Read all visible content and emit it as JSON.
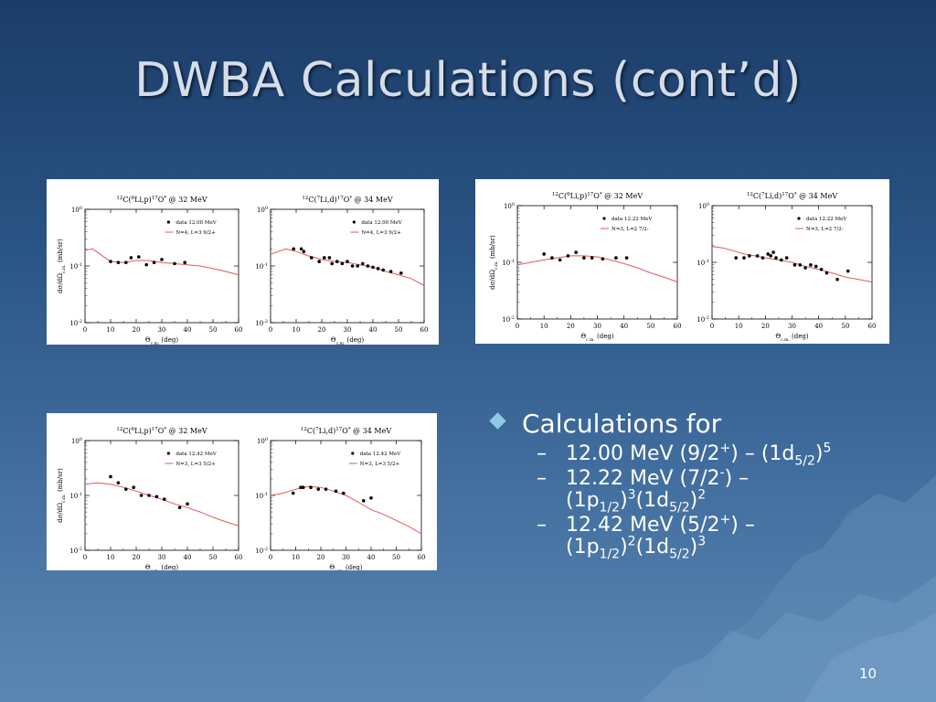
{
  "slide": {
    "title": "DWBA Calculations (cont’d)",
    "page_number": "10"
  },
  "bullets": {
    "main": "Calculations for",
    "subs": [
      {
        "dash": "–",
        "a": "12.00 MeV (9/2",
        "sup1": "+",
        "b": ") – (1d",
        "sub1": "5/2",
        "c": ")",
        "sup2": "5",
        "d": "",
        "sub2": "",
        "e": "",
        "sup3": ""
      },
      {
        "dash": "–",
        "a": "12.22 MeV (7/2",
        "sup1": "-",
        "b": ") – (1p",
        "sub1": "1/2",
        "c": ")",
        "sup2": "3",
        "d": "(1d",
        "sub2": "5/2",
        "e": ")",
        "sup3": "2"
      },
      {
        "dash": "–",
        "a": "12.42 MeV (5/2",
        "sup1": "+",
        "b": ") – (1p",
        "sub1": "1/2",
        "c": ")",
        "sup2": "2",
        "d": "(1d",
        "sub2": "5/2",
        "e": ")",
        "sup3": "3"
      }
    ]
  },
  "chart_data": [
    {
      "type": "scatter+line",
      "panel": "A",
      "pos": "left",
      "title_main": "C(",
      "title_pre": "12",
      "title_proj": "6",
      "title_rest": "Li,p)",
      "title_res": "17",
      "title_end": "O",
      "title_tail": " @ 32 MeV",
      "xlabel": "Θc.m. (deg)",
      "ylabel": "dσ/dΩc.m. (mb/sr)",
      "xlim": [
        0,
        60
      ],
      "ylim_log": [
        -2,
        0
      ],
      "xticks": [
        "0",
        "10",
        "20",
        "30",
        "40",
        "50",
        "60"
      ],
      "yticks": [
        "10-2",
        "10-1",
        "100"
      ],
      "legend": {
        "data": "data 12.00 MeV",
        "line": "N=4, L=3  9/2+"
      },
      "points": [
        [
          10,
          0.12
        ],
        [
          13,
          0.115
        ],
        [
          16,
          0.115
        ],
        [
          18,
          0.14
        ],
        [
          21,
          0.145
        ],
        [
          24,
          0.105
        ],
        [
          27,
          0.115
        ],
        [
          30,
          0.13
        ],
        [
          35,
          0.11
        ],
        [
          39,
          0.115
        ]
      ],
      "curve": [
        [
          0,
          0.19
        ],
        [
          3,
          0.2
        ],
        [
          6,
          0.16
        ],
        [
          10,
          0.12
        ],
        [
          15,
          0.115
        ],
        [
          20,
          0.125
        ],
        [
          25,
          0.125
        ],
        [
          30,
          0.115
        ],
        [
          35,
          0.11
        ],
        [
          40,
          0.105
        ],
        [
          45,
          0.1
        ],
        [
          50,
          0.09
        ],
        [
          55,
          0.08
        ],
        [
          60,
          0.07
        ]
      ]
    },
    {
      "type": "scatter+line",
      "panel": "A",
      "pos": "right",
      "title_main": "C(",
      "title_pre": "12",
      "title_proj": "7",
      "title_rest": "Li,d)",
      "title_res": "17",
      "title_end": "O",
      "title_tail": " @ 34 MeV",
      "xlabel": "Θc.m. (deg)",
      "ylabel": "",
      "xlim": [
        0,
        60
      ],
      "ylim_log": [
        -2,
        0
      ],
      "xticks": [
        "0",
        "10",
        "20",
        "30",
        "40",
        "50",
        "60"
      ],
      "yticks": [
        "10-2",
        "10-1",
        "100"
      ],
      "legend": {
        "data": "data 12.00 MeV",
        "line": "N=4, L=3  9/2+"
      },
      "points": [
        [
          9,
          0.2
        ],
        [
          12,
          0.2
        ],
        [
          13,
          0.18
        ],
        [
          16,
          0.14
        ],
        [
          19,
          0.12
        ],
        [
          21,
          0.14
        ],
        [
          23,
          0.14
        ],
        [
          24,
          0.11
        ],
        [
          26,
          0.12
        ],
        [
          28,
          0.11
        ],
        [
          30,
          0.12
        ],
        [
          32,
          0.1
        ],
        [
          34,
          0.1
        ],
        [
          36,
          0.11
        ],
        [
          38,
          0.1
        ],
        [
          40,
          0.095
        ],
        [
          42,
          0.09
        ],
        [
          44,
          0.085
        ],
        [
          47,
          0.08
        ],
        [
          51,
          0.075
        ]
      ],
      "curve": [
        [
          0,
          0.16
        ],
        [
          3,
          0.18
        ],
        [
          6,
          0.2
        ],
        [
          10,
          0.18
        ],
        [
          15,
          0.15
        ],
        [
          20,
          0.13
        ],
        [
          25,
          0.12
        ],
        [
          30,
          0.115
        ],
        [
          35,
          0.105
        ],
        [
          40,
          0.095
        ],
        [
          45,
          0.08
        ],
        [
          50,
          0.07
        ],
        [
          55,
          0.06
        ],
        [
          60,
          0.045
        ]
      ]
    },
    {
      "type": "scatter+line",
      "panel": "B",
      "pos": "left",
      "title_main": "C(",
      "title_pre": "12",
      "title_proj": "6",
      "title_rest": "Li,p)",
      "title_res": "17",
      "title_end": "O",
      "title_tail": " @ 32 MeV",
      "xlabel": "Θc.m. (deg)",
      "ylabel": "dσ/dΩc.m. (mb/sr)",
      "xlim": [
        0,
        60
      ],
      "ylim_log": [
        -2,
        0
      ],
      "xticks": [
        "0",
        "10",
        "20",
        "30",
        "40",
        "50",
        "60"
      ],
      "yticks": [
        "10-2",
        "10-1",
        "100"
      ],
      "legend": {
        "data": "data 12.22 MeV",
        "line": "N=3, L=2  7/2-"
      },
      "points": [
        [
          10,
          0.14
        ],
        [
          13,
          0.12
        ],
        [
          16,
          0.11
        ],
        [
          19,
          0.13
        ],
        [
          22,
          0.15
        ],
        [
          25,
          0.12
        ],
        [
          28,
          0.12
        ],
        [
          32,
          0.115
        ],
        [
          37,
          0.12
        ],
        [
          41,
          0.12
        ]
      ],
      "curve": [
        [
          0,
          0.09
        ],
        [
          5,
          0.1
        ],
        [
          10,
          0.11
        ],
        [
          15,
          0.12
        ],
        [
          20,
          0.13
        ],
        [
          25,
          0.13
        ],
        [
          30,
          0.125
        ],
        [
          35,
          0.11
        ],
        [
          40,
          0.095
        ],
        [
          45,
          0.08
        ],
        [
          50,
          0.065
        ],
        [
          55,
          0.055
        ],
        [
          60,
          0.045
        ]
      ]
    },
    {
      "type": "scatter+line",
      "panel": "B",
      "pos": "right",
      "title_main": "C(",
      "title_pre": "12",
      "title_proj": "7",
      "title_rest": "Li,d)",
      "title_res": "17",
      "title_end": "O",
      "title_tail": " @ 34 MeV",
      "xlabel": "Θc.m. (deg)",
      "ylabel": "",
      "xlim": [
        0,
        60
      ],
      "ylim_log": [
        -2,
        0
      ],
      "xticks": [
        "0",
        "10",
        "20",
        "30",
        "40",
        "50",
        "60"
      ],
      "yticks": [
        "10-2",
        "10-1",
        "100"
      ],
      "legend": {
        "data": "data 12.22 MeV",
        "line": "N=3, L=2  7/2-"
      },
      "points": [
        [
          9,
          0.12
        ],
        [
          12,
          0.12
        ],
        [
          14,
          0.13
        ],
        [
          17,
          0.13
        ],
        [
          19,
          0.12
        ],
        [
          21,
          0.14
        ],
        [
          22,
          0.13
        ],
        [
          23,
          0.15
        ],
        [
          24,
          0.12
        ],
        [
          26,
          0.11
        ],
        [
          28,
          0.12
        ],
        [
          31,
          0.09
        ],
        [
          33,
          0.09
        ],
        [
          35,
          0.08
        ],
        [
          37,
          0.09
        ],
        [
          39,
          0.085
        ],
        [
          41,
          0.075
        ],
        [
          43,
          0.065
        ],
        [
          47,
          0.05
        ],
        [
          51,
          0.07
        ]
      ],
      "curve": [
        [
          0,
          0.19
        ],
        [
          4,
          0.18
        ],
        [
          8,
          0.16
        ],
        [
          12,
          0.14
        ],
        [
          16,
          0.13
        ],
        [
          20,
          0.12
        ],
        [
          25,
          0.11
        ],
        [
          30,
          0.1
        ],
        [
          35,
          0.085
        ],
        [
          40,
          0.075
        ],
        [
          45,
          0.065
        ],
        [
          50,
          0.055
        ],
        [
          55,
          0.05
        ],
        [
          60,
          0.045
        ]
      ]
    },
    {
      "type": "scatter+line",
      "panel": "C",
      "pos": "left",
      "title_main": "C(",
      "title_pre": "12",
      "title_proj": "6",
      "title_rest": "Li,p)",
      "title_res": "17",
      "title_end": "O",
      "title_tail": " @ 32 MeV",
      "xlabel": "Θc.m. (deg)",
      "ylabel": "dσ/dΩc.m. (mb/sr)",
      "xlim": [
        0,
        60
      ],
      "ylim_log": [
        -2,
        0
      ],
      "xticks": [
        "0",
        "10",
        "20",
        "30",
        "40",
        "50",
        "60"
      ],
      "yticks": [
        "10-2",
        "10-1",
        "100"
      ],
      "legend": {
        "data": "data 12.42 MeV",
        "line": "N=3, L=3  5/2+"
      },
      "points": [
        [
          10,
          0.22
        ],
        [
          13,
          0.17
        ],
        [
          16,
          0.13
        ],
        [
          19,
          0.14
        ],
        [
          22,
          0.1
        ],
        [
          25,
          0.1
        ],
        [
          28,
          0.095
        ],
        [
          31,
          0.085
        ],
        [
          37,
          0.06
        ],
        [
          40,
          0.07
        ]
      ],
      "curve": [
        [
          0,
          0.16
        ],
        [
          5,
          0.17
        ],
        [
          10,
          0.16
        ],
        [
          15,
          0.14
        ],
        [
          20,
          0.12
        ],
        [
          25,
          0.1
        ],
        [
          30,
          0.085
        ],
        [
          35,
          0.07
        ],
        [
          40,
          0.06
        ],
        [
          45,
          0.05
        ],
        [
          50,
          0.04
        ],
        [
          55,
          0.033
        ],
        [
          60,
          0.028
        ]
      ]
    },
    {
      "type": "scatter+line",
      "panel": "C",
      "pos": "right",
      "title_main": "C(",
      "title_pre": "12",
      "title_proj": "7",
      "title_rest": "Li,d)",
      "title_res": "17",
      "title_end": "O",
      "title_tail": " @ 34 MeV",
      "xlabel": "Θc.m. (deg)",
      "ylabel": "",
      "xlim": [
        0,
        60
      ],
      "ylim_log": [
        -2,
        0
      ],
      "xticks": [
        "0",
        "10",
        "20",
        "30",
        "40",
        "50",
        "60"
      ],
      "yticks": [
        "10-2",
        "10-1",
        "100"
      ],
      "legend": {
        "data": "data 12.42 MeV",
        "line": "N=3, L=3  5/2+"
      },
      "points": [
        [
          9,
          0.11
        ],
        [
          12,
          0.14
        ],
        [
          13,
          0.14
        ],
        [
          16,
          0.14
        ],
        [
          19,
          0.13
        ],
        [
          22,
          0.13
        ],
        [
          26,
          0.12
        ],
        [
          29,
          0.11
        ],
        [
          37,
          0.08
        ],
        [
          40,
          0.09
        ]
      ],
      "curve": [
        [
          0,
          0.1
        ],
        [
          5,
          0.11
        ],
        [
          10,
          0.13
        ],
        [
          15,
          0.145
        ],
        [
          20,
          0.14
        ],
        [
          25,
          0.12
        ],
        [
          30,
          0.1
        ],
        [
          35,
          0.075
        ],
        [
          40,
          0.055
        ],
        [
          45,
          0.045
        ],
        [
          50,
          0.035
        ],
        [
          55,
          0.027
        ],
        [
          60,
          0.02
        ]
      ]
    }
  ],
  "colors": {
    "curve": "#e05a5a",
    "points": "#000000",
    "bullet": "#8ecae6",
    "title": "#d5dde8"
  }
}
